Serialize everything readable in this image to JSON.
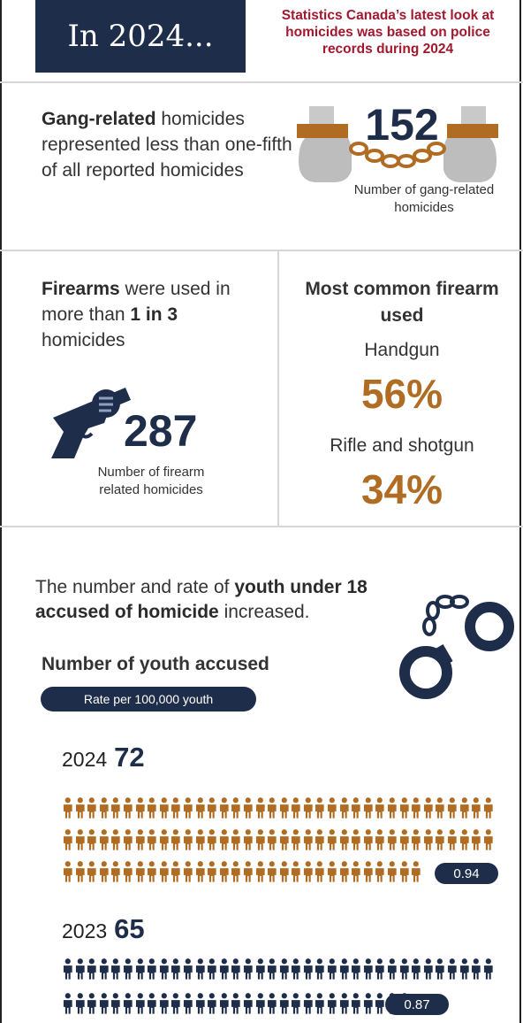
{
  "header": {
    "title": "In 2024...",
    "note": "Statistics Canada’s latest look at homicides was based on police records during 2024"
  },
  "gang": {
    "text_bold": "Gang-related",
    "text_rest": " homicides represented less than one-fifth of all reported homicides",
    "number": "152",
    "caption": "Number of gang-related homicides"
  },
  "firearms": {
    "text_bold": "Firearms",
    "text_mid": " were used in more than ",
    "text_bold2": "1 in 3",
    "text_end": " homicides",
    "number": "287",
    "caption": "Number of firearm related homicides"
  },
  "common_firearm": {
    "heading": "Most common firearm used",
    "item1_label": "Handgun",
    "item1_value": "56%",
    "item2_label": "Rifle and shotgun",
    "item2_value": "34%"
  },
  "youth": {
    "text_rest": "The number and rate of ",
    "text_bold": "youth under 18 accused of homicide",
    "text_end": " increased.",
    "subheading": "Number of youth accused",
    "pill": "Rate per 100,000 youth",
    "years": [
      {
        "year": "2024",
        "count": "72",
        "count_value": 72,
        "rate": "0.94"
      },
      {
        "year": "2023",
        "count": "65",
        "count_value": 65,
        "rate": "0.87"
      }
    ]
  },
  "colors": {
    "navy": "#1e2d4a",
    "gold": "#b06c23",
    "red_note": "#a2182e"
  },
  "icons": [
    "shackled-fists-icon",
    "revolver-icon",
    "handcuffs-icon",
    "person-icon"
  ]
}
